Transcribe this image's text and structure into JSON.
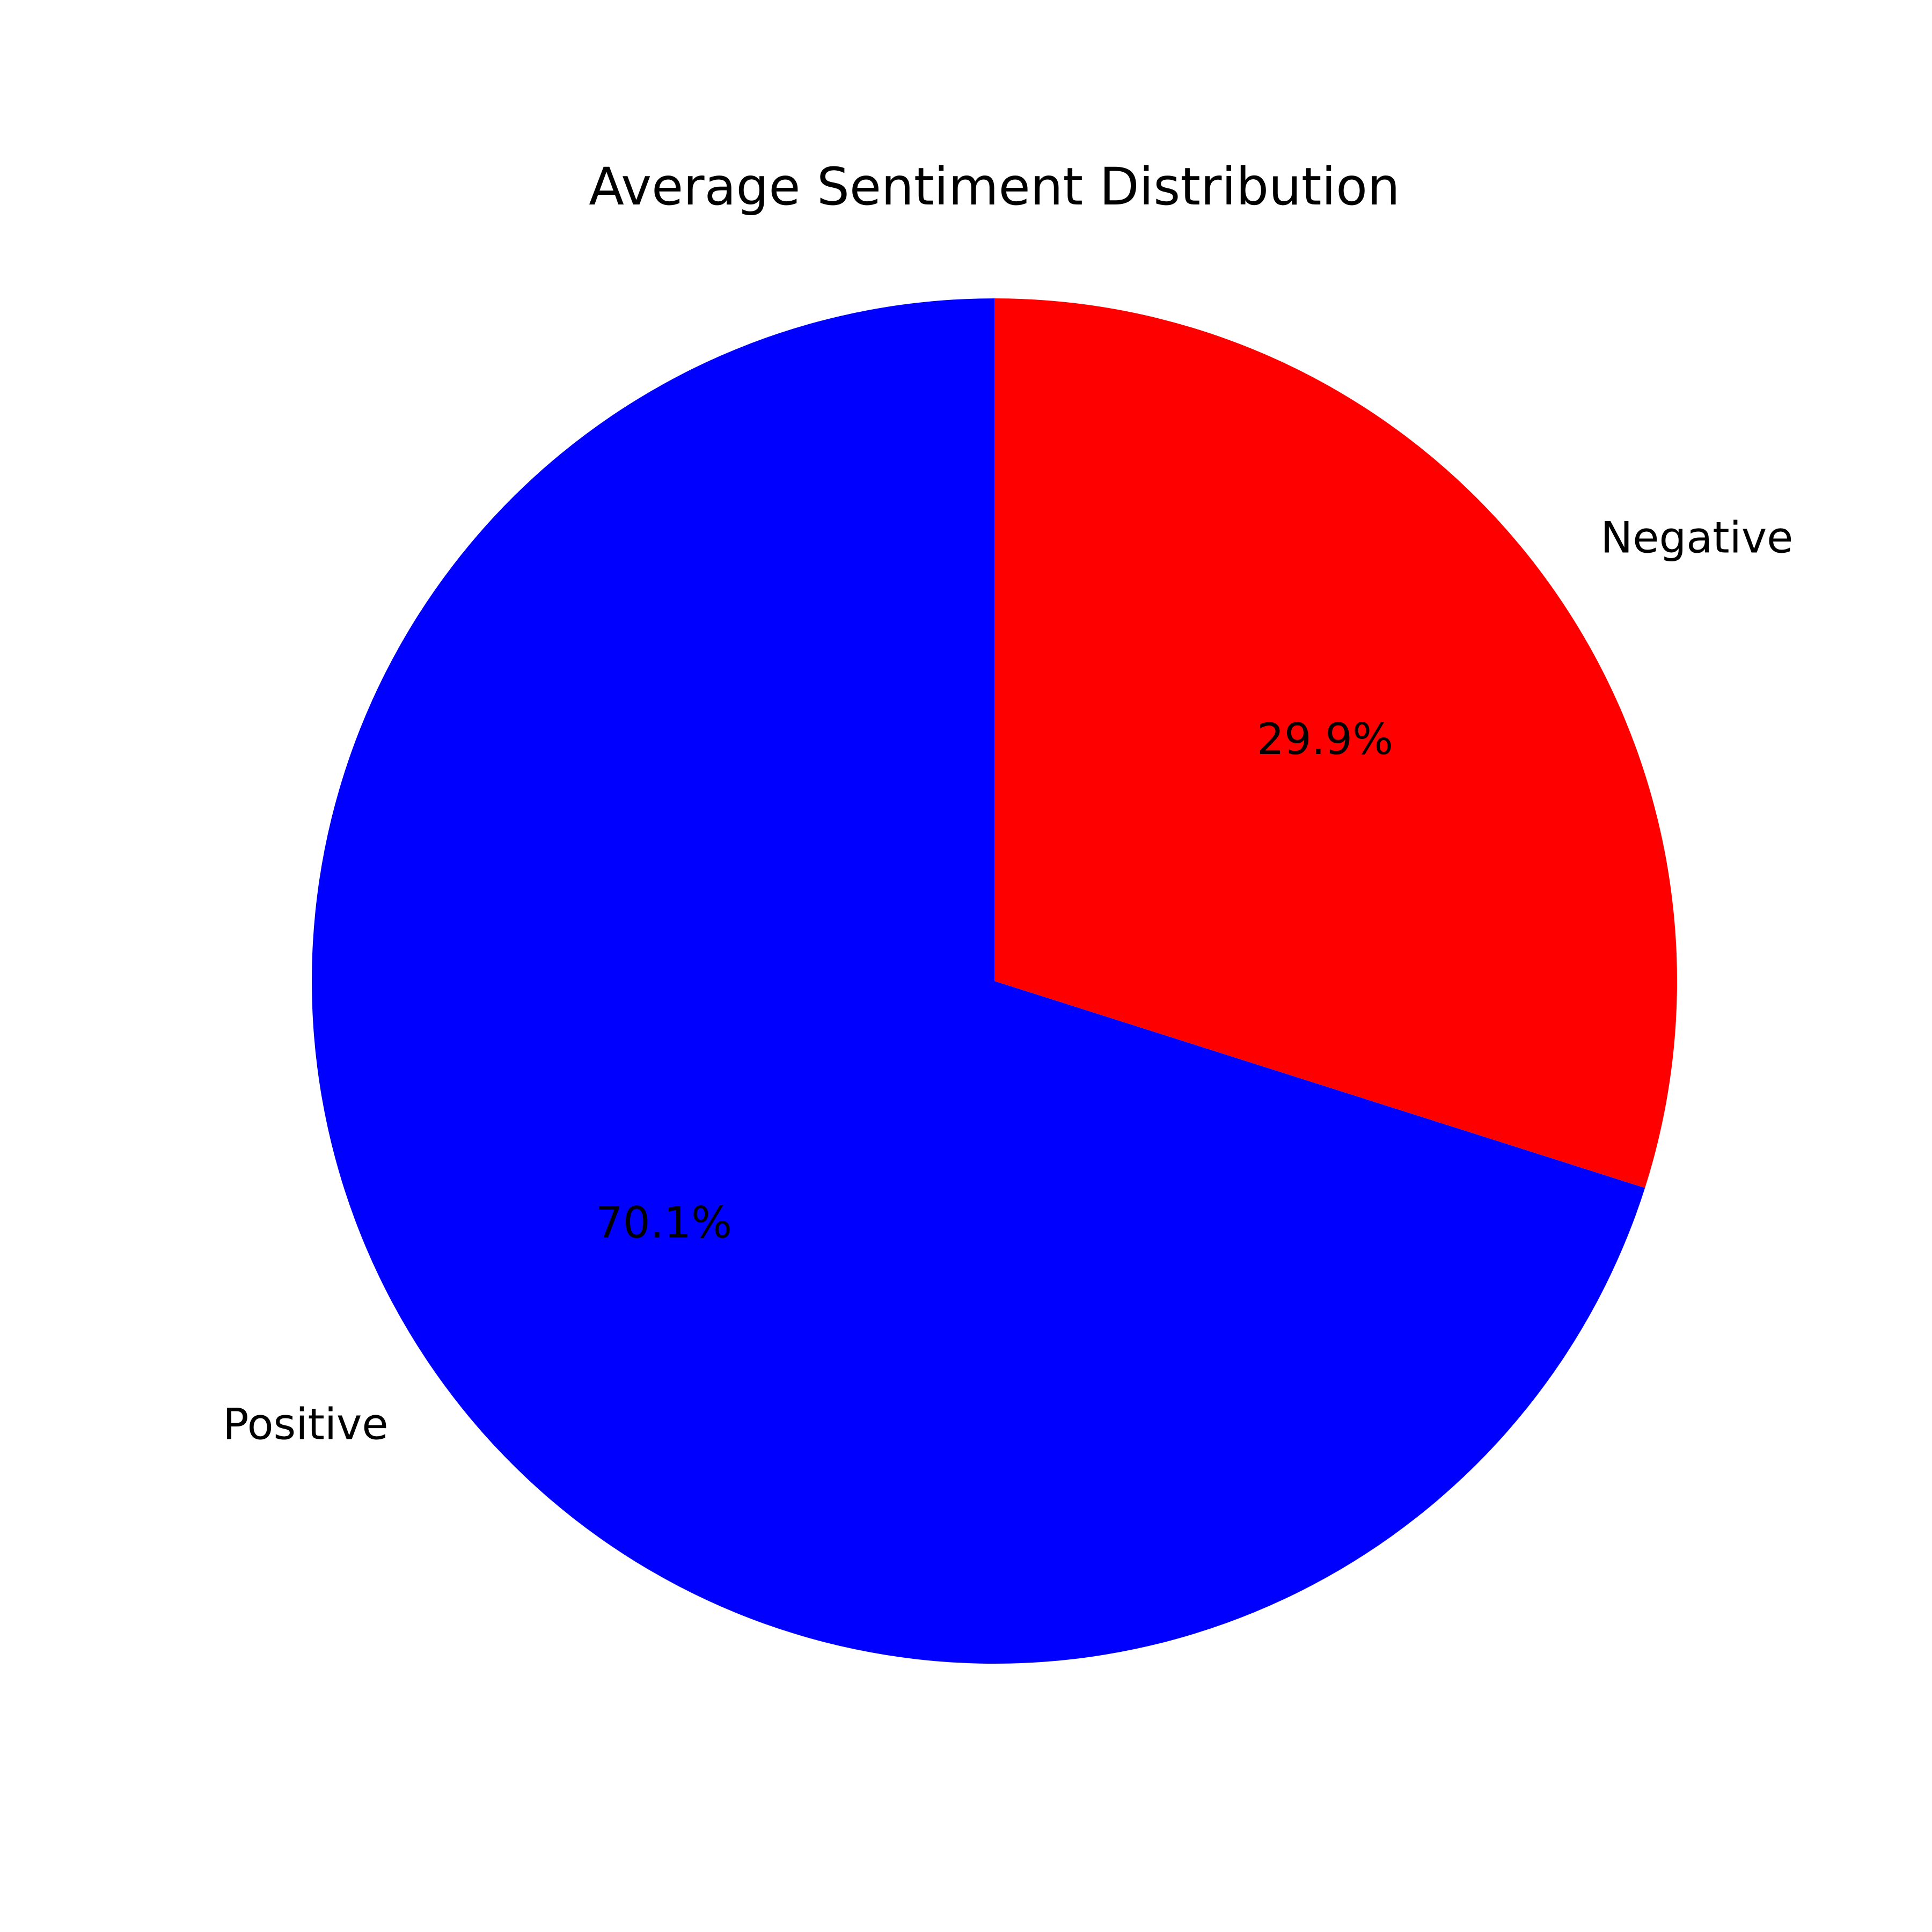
{
  "chart_data": {
    "type": "pie",
    "title": "Average Sentiment Distribution",
    "slices": [
      {
        "name": "Positive",
        "value": 70.1,
        "value_label": "70.1%",
        "color": "#0000ff"
      },
      {
        "name": "Negative",
        "value": 29.9,
        "value_label": "29.9%",
        "color": "#ff0000"
      }
    ],
    "start_angle_deg": 90,
    "direction": "counterclockwise"
  }
}
